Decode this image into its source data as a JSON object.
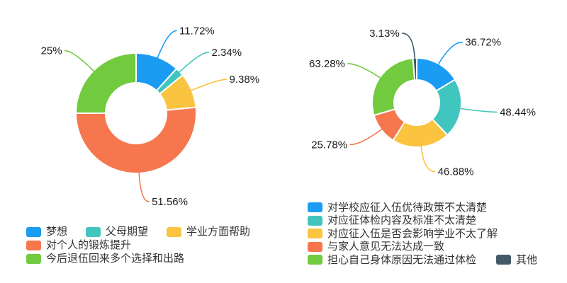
{
  "canvas": {
    "background": "#ffffff"
  },
  "chart_data": [
    {
      "type": "pie",
      "subtype": "donut",
      "title": "",
      "legend_position": "bottom-left",
      "categories": [
        "梦想",
        "父母期望",
        "学业方面帮助",
        "对个人的锻炼提升",
        "今后退伍回来多个选择和出路"
      ],
      "values": [
        11.72,
        2.34,
        9.38,
        51.56,
        25
      ],
      "value_labels": [
        "11.72%",
        "2.34%",
        "9.38%",
        "51.56%",
        "25%"
      ],
      "colors": [
        "#1B9CF3",
        "#41C6BF",
        "#FAC440",
        "#F6764D",
        "#72CA3F"
      ],
      "start_angle": "12-oclock-clockwise"
    },
    {
      "type": "pie",
      "subtype": "donut",
      "title": "",
      "legend_position": "bottom-right",
      "categories": [
        "对学校应征入伍优待政策不太清楚",
        "对应征体检内容及标准不太清楚",
        "对应征入伍是否会影响学业不太了解",
        "与家人意见无法达成一致",
        "担心自己身体原因无法通过体检",
        "其他"
      ],
      "values": [
        36.72,
        48.44,
        46.88,
        25.78,
        63.28,
        3.13
      ],
      "value_labels": [
        "36.72%",
        "48.44%",
        "46.88%",
        "25.78%",
        "63.28%",
        "3.13%"
      ],
      "colors": [
        "#1B9CF3",
        "#41C6BF",
        "#FAC440",
        "#F6764D",
        "#72CA3F",
        "#435968"
      ],
      "start_angle": "12-oclock-clockwise"
    }
  ]
}
